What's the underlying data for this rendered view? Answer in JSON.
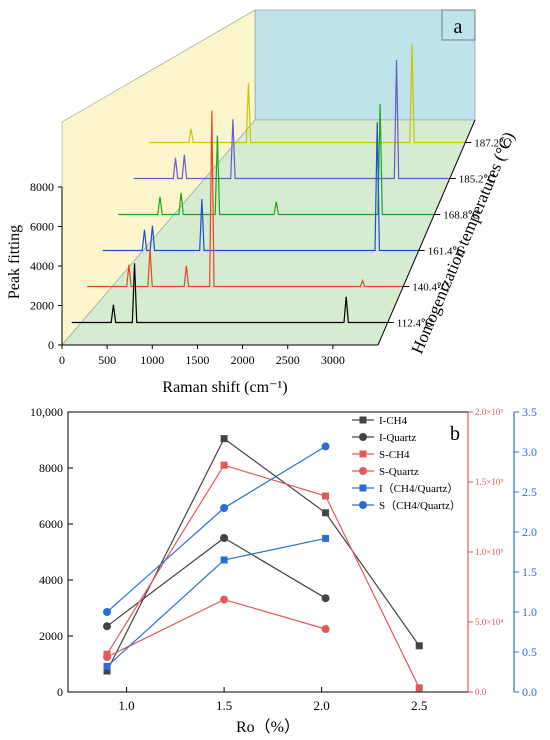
{
  "chart_data": [
    {
      "panel_label": "a",
      "type": "line",
      "subtype": "3d-waterfall",
      "xlabel": "Raman shift (cm⁻¹)",
      "ylabel": "Peak fitting",
      "zlabel": "Homogenization temperatures (°C)",
      "xlim": [
        0,
        3500
      ],
      "ylim": [
        0,
        8000
      ],
      "x_ticks": [
        "0",
        "500",
        "1000",
        "1500",
        "2000",
        "2500",
        "3000"
      ],
      "y_ticks": [
        "0",
        "2000",
        "4000",
        "6000",
        "8000"
      ],
      "series": [
        {
          "name": "112.4℃",
          "color": "#000000",
          "peaks": [
            {
              "x": 462,
              "y": 900
            },
            {
              "x": 696,
              "y": 3000
            },
            {
              "x": 3040,
              "y": 1300
            }
          ]
        },
        {
          "name": "140.4℃",
          "color": "#e8451e",
          "peaks": [
            {
              "x": 462,
              "y": 1100
            },
            {
              "x": 696,
              "y": 1900
            },
            {
              "x": 1098,
              "y": 1050
            },
            {
              "x": 1380,
              "y": 8900
            },
            {
              "x": 3050,
              "y": 300
            }
          ]
        },
        {
          "name": "161.4℃",
          "color": "#1a4fd6",
          "peaks": [
            {
              "x": 462,
              "y": 1050
            },
            {
              "x": 550,
              "y": 1250
            },
            {
              "x": 1098,
              "y": 2600
            },
            {
              "x": 3040,
              "y": 6500
            }
          ]
        },
        {
          "name": "168.8℃",
          "color": "#1aa81a",
          "peaks": [
            {
              "x": 462,
              "y": 900
            },
            {
              "x": 696,
              "y": 1100
            },
            {
              "x": 1098,
              "y": 4000
            },
            {
              "x": 1750,
              "y": 650
            },
            {
              "x": 2900,
              "y": 5600
            }
          ]
        },
        {
          "name": "185.2℃",
          "color": "#6a5acd",
          "peaks": [
            {
              "x": 462,
              "y": 1050
            },
            {
              "x": 560,
              "y": 1200
            },
            {
              "x": 1098,
              "y": 3000
            },
            {
              "x": 2910,
              "y": 6000
            }
          ]
        },
        {
          "name": "187.2℃",
          "color": "#c8c800",
          "peaks": [
            {
              "x": 462,
              "y": 700
            },
            {
              "x": 1098,
              "y": 3000
            },
            {
              "x": 2910,
              "y": 5000
            }
          ]
        }
      ]
    },
    {
      "panel_label": "b",
      "type": "line",
      "xlabel": "Ro（%）",
      "x_ticks": [
        "1.0",
        "1.5",
        "2.0",
        "2.5"
      ],
      "xlim": [
        0.7,
        2.75
      ],
      "y_left": {
        "lim": [
          0,
          10000
        ],
        "ticks": [
          "0",
          "2000",
          "4000",
          "6000",
          "8000",
          "10,000"
        ],
        "color": "#000000"
      },
      "y_right1": {
        "lim": [
          0,
          200000
        ],
        "ticks": [
          "0.0",
          "5.0×10⁴",
          "1.0×10⁵",
          "1.5×10⁵",
          "2.0×10⁵"
        ],
        "color": "#e05a5a"
      },
      "y_right2": {
        "lim": [
          0,
          3.5
        ],
        "ticks": [
          "0.0",
          "0.5",
          "1.0",
          "1.5",
          "2.0",
          "2.5",
          "3.0",
          "3.5"
        ],
        "color": "#2a6fd0"
      },
      "series": [
        {
          "name": "I-CH4",
          "axis": "left",
          "marker": "square",
          "color": "#444444",
          "points": [
            [
              0.9,
              750
            ],
            [
              1.5,
              9050
            ],
            [
              2.02,
              6400
            ],
            [
              2.5,
              1650
            ]
          ]
        },
        {
          "name": "I-Quartz",
          "axis": "left",
          "marker": "circle",
          "color": "#444444",
          "points": [
            [
              0.9,
              2350
            ],
            [
              1.5,
              5500
            ],
            [
              2.02,
              3350
            ]
          ]
        },
        {
          "name": "S-CH4",
          "axis": "right1",
          "marker": "square",
          "color": "#e05a5a",
          "points": [
            [
              0.9,
              27000
            ],
            [
              1.5,
              162000
            ],
            [
              2.02,
              140000
            ],
            [
              2.5,
              3000
            ]
          ]
        },
        {
          "name": "S-Quartz",
          "axis": "right1",
          "marker": "circle",
          "color": "#e05a5a",
          "points": [
            [
              0.9,
              25000
            ],
            [
              1.5,
              66000
            ],
            [
              2.02,
              45000
            ]
          ]
        },
        {
          "name": "I（CH4/Quartz）",
          "axis": "right2",
          "marker": "square",
          "color": "#2a6fd0",
          "points": [
            [
              0.9,
              0.32
            ],
            [
              1.5,
              1.65
            ],
            [
              2.02,
              1.92
            ]
          ]
        },
        {
          "name": "S（CH4/Quartz）",
          "axis": "right2",
          "marker": "circle",
          "color": "#2a6fd0",
          "points": [
            [
              0.9,
              1.0
            ],
            [
              1.5,
              2.3
            ],
            [
              2.02,
              3.07
            ]
          ]
        }
      ],
      "legend_position": "top-right"
    }
  ]
}
